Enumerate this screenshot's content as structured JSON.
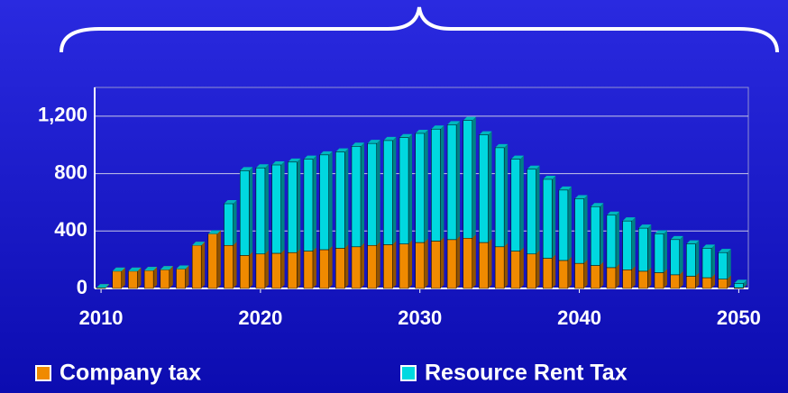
{
  "chart_data": {
    "type": "bar",
    "stacked": true,
    "x": [
      2010,
      2011,
      2012,
      2013,
      2014,
      2015,
      2016,
      2017,
      2018,
      2019,
      2020,
      2021,
      2022,
      2023,
      2024,
      2025,
      2026,
      2027,
      2028,
      2029,
      2030,
      2031,
      2032,
      2033,
      2034,
      2035,
      2036,
      2037,
      2038,
      2039,
      2040,
      2041,
      2042,
      2043,
      2044,
      2045,
      2046,
      2047,
      2048,
      2049,
      2050
    ],
    "series": [
      {
        "name": "Company tax",
        "color": "#f08a00",
        "values": [
          5,
          120,
          120,
          125,
          130,
          135,
          300,
          380,
          300,
          230,
          240,
          245,
          250,
          260,
          270,
          280,
          290,
          300,
          305,
          310,
          320,
          330,
          340,
          350,
          320,
          290,
          260,
          240,
          210,
          195,
          175,
          160,
          145,
          130,
          120,
          110,
          95,
          85,
          75,
          65,
          5
        ]
      },
      {
        "name": "Resource Rent Tax",
        "color": "#00d8e0",
        "values": [
          0,
          0,
          0,
          0,
          0,
          0,
          0,
          0,
          290,
          590,
          600,
          615,
          630,
          640,
          660,
          670,
          700,
          710,
          725,
          740,
          760,
          780,
          800,
          820,
          750,
          690,
          640,
          590,
          550,
          490,
          450,
          410,
          365,
          340,
          300,
          270,
          245,
          225,
          205,
          185,
          30
        ]
      }
    ],
    "xlim": [
      2009.6,
      2050.6
    ],
    "xticks": [
      2010,
      2020,
      2030,
      2040,
      2050
    ],
    "ylim": [
      0,
      1400
    ],
    "yticks": [
      0,
      400,
      800,
      {
        "value": 1200,
        "label": "1,200"
      }
    ],
    "grid": true,
    "legend": "bottom"
  }
}
